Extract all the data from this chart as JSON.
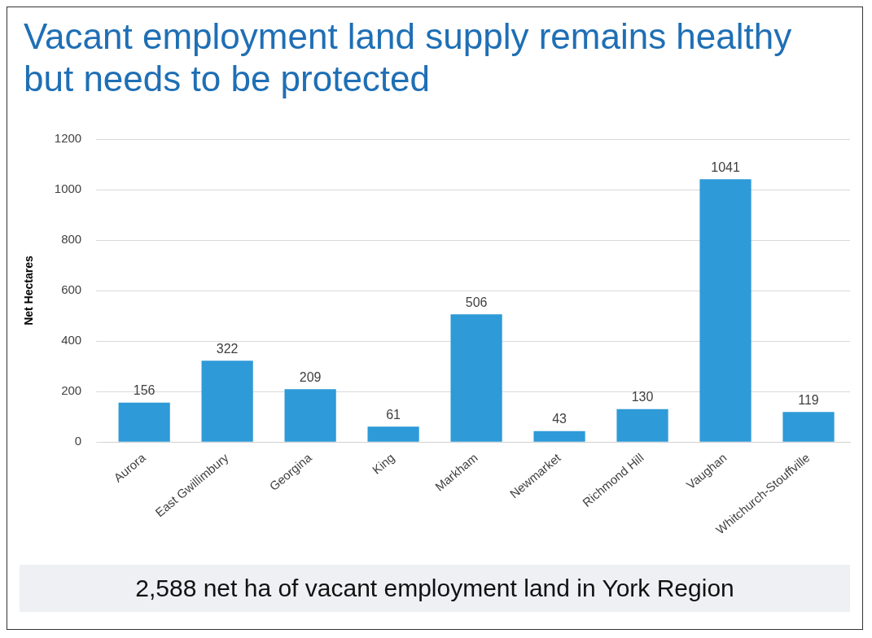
{
  "chart_data": {
    "type": "bar",
    "title": "Vacant employment land supply remains healthy but needs to be protected",
    "ylabel": "Net Hectares",
    "categories": [
      "Aurora",
      "East Gwillimbury",
      "Georgina",
      "King",
      "Markham",
      "Newmarket",
      "Richmond Hill",
      "Vaughan",
      "Whitchurch-Stouffville"
    ],
    "values": [
      156,
      322,
      209,
      61,
      506,
      43,
      130,
      1041,
      119
    ],
    "color": "#2e9ad8",
    "ylim": [
      0,
      1200
    ],
    "yticks": [
      0,
      200,
      400,
      600,
      800,
      1000,
      1200
    ],
    "grid": "y",
    "data_labels": true,
    "annotations": [
      "2,588 net ha of vacant employment land in York Region"
    ]
  }
}
